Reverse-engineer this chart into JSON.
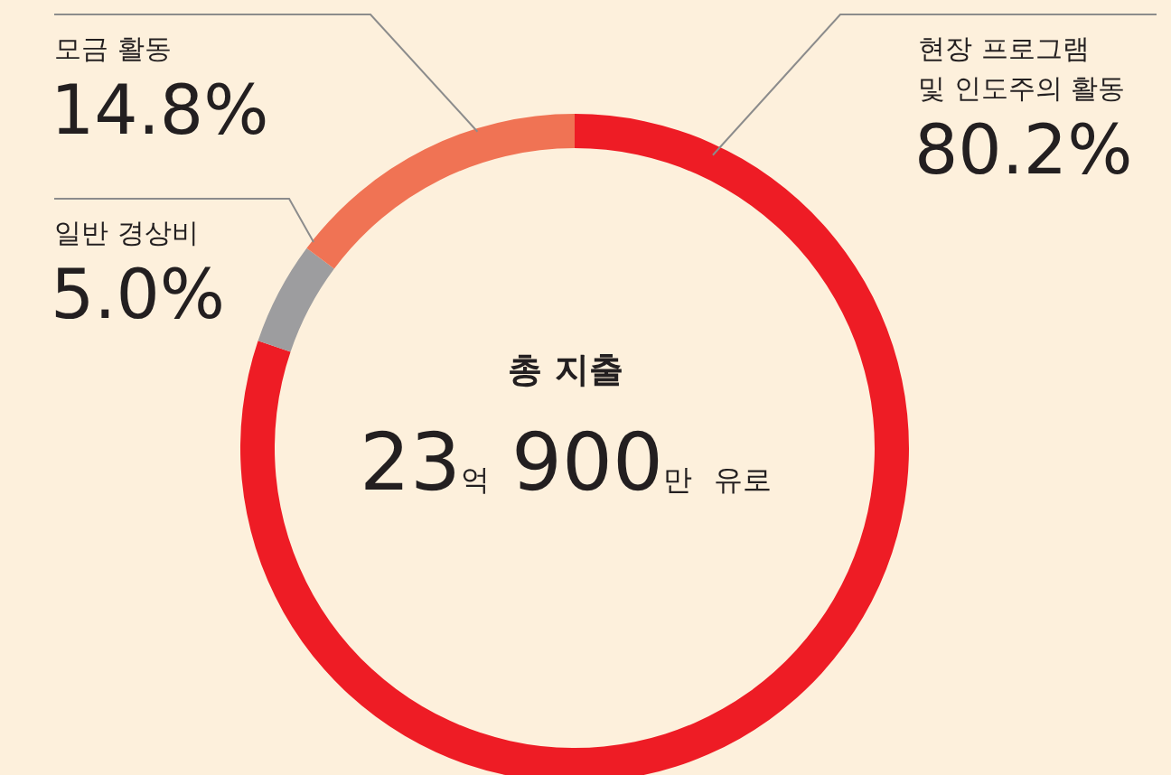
{
  "chart_data": {
    "type": "donut",
    "title": "총 지출",
    "subtitle": "23억 900만 유로",
    "categories": [
      "현장 프로그램\n및 인도주의 활동",
      "일반 경상비",
      "모금 활동"
    ],
    "values": [
      80.2,
      5.0,
      14.8
    ],
    "colors": [
      "#ee1c25",
      "#9d9d9f",
      "#f07354"
    ],
    "value_labels": [
      "80.2%",
      "5.0%",
      "14.8%"
    ],
    "legend": false
  }
}
